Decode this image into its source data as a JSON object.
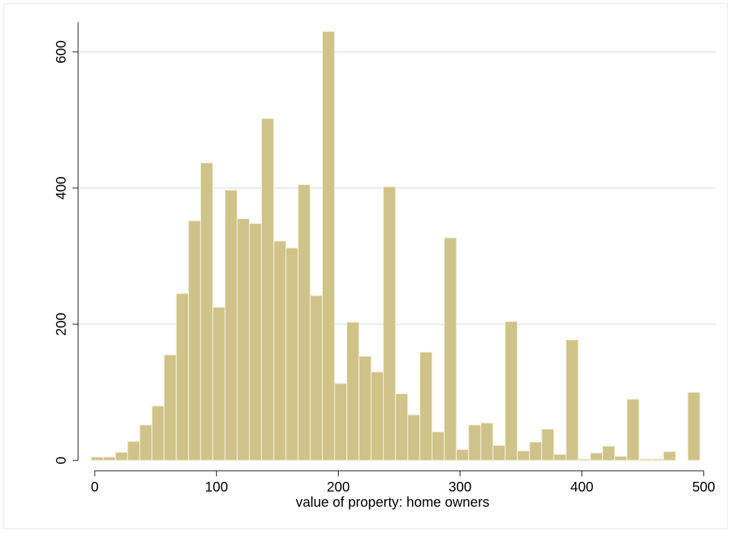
{
  "chart_data": {
    "type": "bar",
    "xlabel": "value of property: home owners",
    "ylabel": "",
    "xlim": [
      0,
      500
    ],
    "ylim": [
      0,
      630
    ],
    "x_ticks": [
      0,
      100,
      200,
      300,
      400,
      500
    ],
    "y_ticks": [
      0,
      200,
      400,
      600
    ],
    "grid": "horizontal",
    "bin_width": 10,
    "bins": [
      [
        2,
        5
      ],
      [
        12,
        5
      ],
      [
        22,
        12
      ],
      [
        32,
        28
      ],
      [
        42,
        52
      ],
      [
        52,
        80
      ],
      [
        62,
        155
      ],
      [
        72,
        245
      ],
      [
        82,
        352
      ],
      [
        92,
        437
      ],
      [
        102,
        225
      ],
      [
        112,
        397
      ],
      [
        122,
        355
      ],
      [
        132,
        348
      ],
      [
        142,
        502
      ],
      [
        152,
        322
      ],
      [
        162,
        312
      ],
      [
        172,
        405
      ],
      [
        182,
        242
      ],
      [
        192,
        630
      ],
      [
        202,
        113
      ],
      [
        212,
        203
      ],
      [
        222,
        153
      ],
      [
        232,
        130
      ],
      [
        242,
        402
      ],
      [
        252,
        98
      ],
      [
        262,
        67
      ],
      [
        272,
        159
      ],
      [
        282,
        42
      ],
      [
        292,
        327
      ],
      [
        302,
        16
      ],
      [
        312,
        52
      ],
      [
        322,
        55
      ],
      [
        332,
        22
      ],
      [
        342,
        204
      ],
      [
        352,
        14
      ],
      [
        362,
        27
      ],
      [
        372,
        46
      ],
      [
        382,
        9
      ],
      [
        392,
        177
      ],
      [
        402,
        2
      ],
      [
        412,
        11
      ],
      [
        422,
        21
      ],
      [
        432,
        6
      ],
      [
        442,
        90
      ],
      [
        452,
        2
      ],
      [
        462,
        2
      ],
      [
        472,
        13
      ],
      [
        492,
        100
      ]
    ],
    "colors": {
      "bar_fill": "#cfc389",
      "bar_stroke": "#f4f0dd",
      "grid": "#e4ecee",
      "axis": "#000000"
    }
  }
}
